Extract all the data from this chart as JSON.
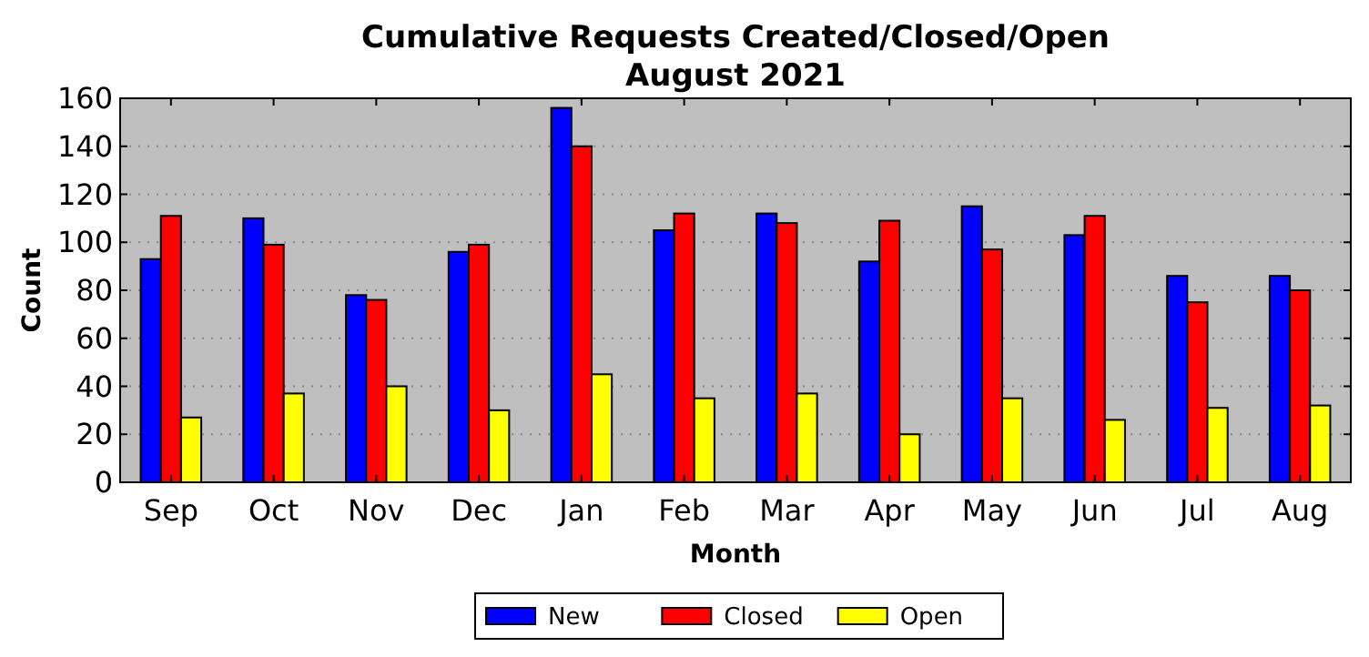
{
  "chart_data": {
    "type": "bar",
    "title": "Cumulative Requests Created/Closed/Open\nAugust 2021",
    "xlabel": "Month",
    "ylabel": "Count",
    "categories": [
      "Sep",
      "Oct",
      "Nov",
      "Dec",
      "Jan",
      "Feb",
      "Mar",
      "Apr",
      "May",
      "Jun",
      "Jul",
      "Aug"
    ],
    "series": [
      {
        "name": "New",
        "color": "#0000ff",
        "values": [
          93,
          110,
          78,
          96,
          156,
          105,
          112,
          92,
          115,
          103,
          86,
          86
        ]
      },
      {
        "name": "Closed",
        "color": "#ff0000",
        "values": [
          111,
          99,
          76,
          99,
          140,
          112,
          108,
          109,
          97,
          111,
          75,
          80
        ]
      },
      {
        "name": "Open",
        "color": "#ffff00",
        "values": [
          27,
          37,
          40,
          30,
          45,
          35,
          37,
          20,
          35,
          26,
          31,
          32
        ]
      }
    ],
    "ylim": [
      0,
      160
    ],
    "yticks": [
      0,
      20,
      40,
      60,
      80,
      100,
      120,
      140,
      160
    ],
    "grid": "y",
    "legend": "bottom"
  }
}
